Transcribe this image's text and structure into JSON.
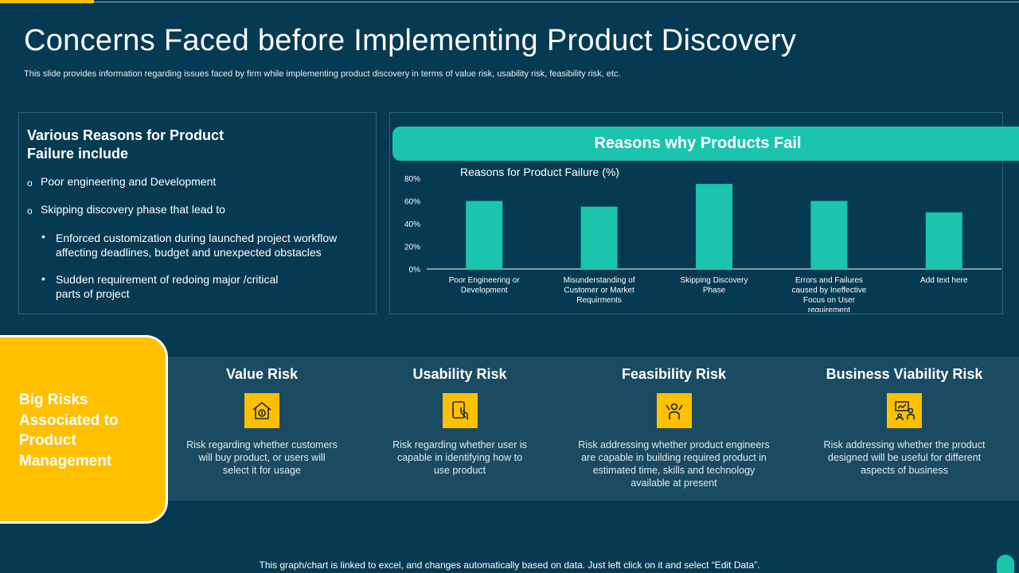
{
  "slide": {
    "title": "Concerns Faced before Implementing Product Discovery",
    "subtitle": "This slide provides information regarding issues faced by firm while implementing product discovery in terms of value risk, usability risk, feasibility risk, etc.",
    "footer": "This graph/chart is linked to excel, and changes automatically based on data. Just left click on it and select “Edit Data”."
  },
  "reasons": {
    "heading": "Various Reasons for Product Failure include",
    "items": [
      "Poor engineering and Development",
      "Skipping discovery phase that lead to"
    ],
    "subitems": [
      "Enforced customization during launched project workflow affecting deadlines, budget and unexpected obstacles",
      "Sudden requirement of redoing major /critical parts of project"
    ]
  },
  "chart_banner": "Reasons why Products Fail",
  "chart_data": {
    "type": "bar",
    "title": "Reasons for Product Failure (%)",
    "categories": [
      "Poor Engineering or Development",
      "Misunderstanding of Customer or Market Requirments",
      "Skipping Discovery Phase",
      "Errors and Failures caused by Ineffective Focus on User requirement",
      "Add text here"
    ],
    "values": [
      60,
      55,
      75,
      60,
      50
    ],
    "ylim": [
      0,
      80
    ],
    "yticks": [
      "0%",
      "20%",
      "40%",
      "60%",
      "80%"
    ],
    "grid": false,
    "bar_color": "#1bc4ad"
  },
  "risks": {
    "tab_label": "Big Risks Associated to Product Management",
    "items": [
      {
        "title": "Value Risk",
        "icon": "house-money-icon",
        "desc": "Risk regarding whether customers will buy product, or users will select it for usage"
      },
      {
        "title": "Usability Risk",
        "icon": "tablet-touch-icon",
        "desc": "Risk regarding whether user is capable in identifying how to use product"
      },
      {
        "title": "Feasibility Risk",
        "icon": "engineer-icon",
        "desc": "Risk addressing whether product engineers are capable in building required product in estimated time, skills and technology available at present"
      },
      {
        "title": "Business Viability Risk",
        "icon": "presentation-icon",
        "desc": "Risk addressing whether the product designed will be useful for different aspects of business"
      }
    ]
  },
  "colors": {
    "background": "#063a52",
    "accent": "#ffc000",
    "teal": "#1bc4ad",
    "band": "#1a4b62"
  }
}
